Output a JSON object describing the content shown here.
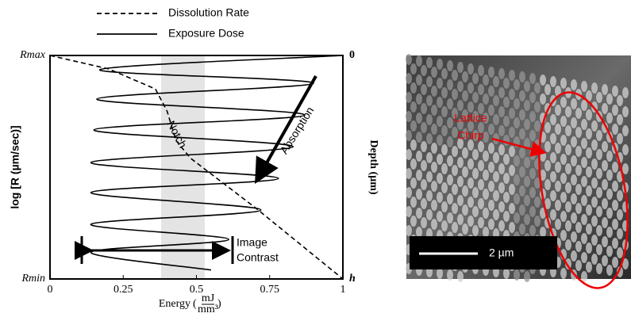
{
  "chart_data": {
    "type": "line",
    "legend": [
      "Dissolution Rate",
      "Exposure Dose"
    ],
    "x_label": "Energy",
    "x_unit_num": "mJ",
    "x_unit_den": "mm³",
    "y_label": "log [R (µm/sec)]",
    "y2_label": "Depth (µm)",
    "xlim": [
      0,
      1
    ],
    "xticks": [
      0,
      0.25,
      0.5,
      0.75,
      1
    ],
    "ylim": [
      1,
      0
    ],
    "yticks": [
      {
        "value": 0,
        "label": "Rmax"
      },
      {
        "value": 1,
        "label": "Rmin"
      }
    ],
    "y2lim": [
      1,
      0
    ],
    "y2ticks": [
      0,
      {
        "value": 1,
        "label": "h"
      }
    ],
    "annotations": [
      "Notch",
      "Absorption",
      "Image",
      "Contrast"
    ],
    "series": [
      {
        "name": "Dissolution Rate",
        "color": "#000000",
        "dash": "6,4",
        "x": [
          0,
          0.2,
          0.36,
          0.4,
          0.43,
          0.48,
          0.52,
          0.7,
          0.85,
          1
        ],
        "values": [
          0,
          0.06,
          0.15,
          0.25,
          0.38,
          0.46,
          0.5,
          0.68,
          0.84,
          1
        ]
      },
      {
        "name": "Exposure Dose",
        "color": "#000000",
        "dash": "none",
        "x": [
          1,
          0.17,
          0.9,
          0.16,
          0.87,
          0.15,
          0.83,
          0.14,
          0.78,
          0.14,
          0.72,
          0.14,
          0.61,
          0.14,
          0.55
        ],
        "values": [
          0,
          0.064,
          0.124,
          0.195,
          0.266,
          0.333,
          0.408,
          0.479,
          0.55,
          0.613,
          0.691,
          0.755,
          0.823,
          0.88,
          0.96
        ]
      }
    ]
  },
  "micrograph": {
    "label": [
      "Lattice",
      "Chirp"
    ],
    "scale_bar": "2 µm"
  }
}
